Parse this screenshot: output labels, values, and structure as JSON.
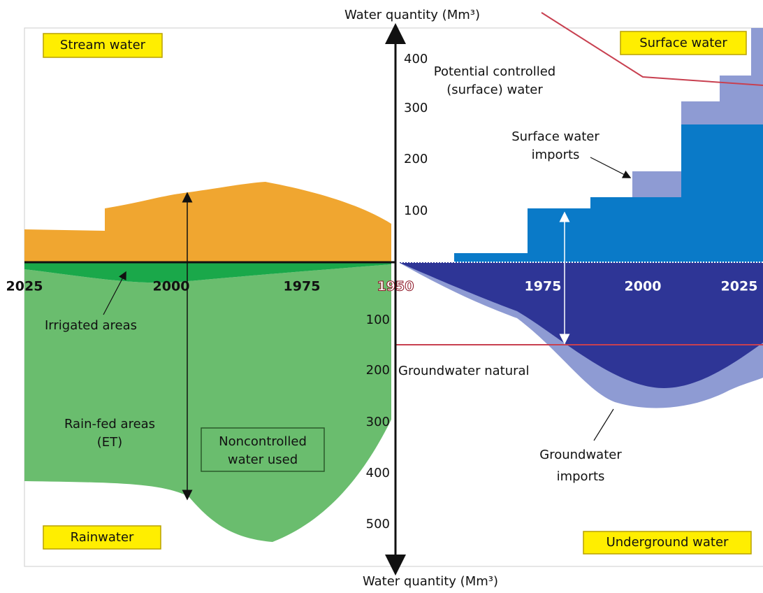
{
  "axis_top_label": "Water quantity (Mm³)",
  "axis_bottom_label": "Water quantity (Mm³)",
  "upper_ticks": [
    "400",
    "300",
    "200",
    "100"
  ],
  "lower_ticks": [
    "100",
    "200",
    "300",
    "400",
    "500"
  ],
  "years_left": [
    "2025",
    "2000",
    "1975"
  ],
  "origin_year": "1950",
  "years_right": [
    "1975",
    "2000",
    "2025"
  ],
  "corner_labels": {
    "top_left": "Stream water",
    "top_right": "Surface water",
    "bottom_left": "Rainwater",
    "bottom_right": "Underground water"
  },
  "annotations": {
    "potential": [
      "Potential controlled",
      "(surface) water"
    ],
    "imports": [
      "Surface water",
      "imports"
    ],
    "irrigated": "Irrigated areas",
    "rainfed": [
      "Rain-fed areas",
      "(ET)"
    ],
    "noncontrolled": [
      "Noncontrolled",
      "water used"
    ],
    "gw_natural": "Groundwater natural",
    "gw_imports": [
      "Groundwater",
      "imports"
    ]
  }
}
